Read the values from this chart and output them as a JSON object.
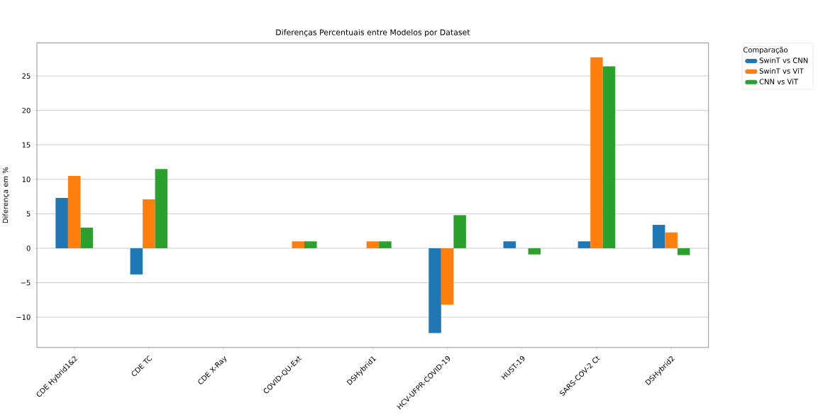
{
  "chart_data": {
    "type": "bar",
    "title": "Diferenças Percentuais entre Modelos por Dataset",
    "ylabel": "Diferença em %",
    "legend_title": "Comparação",
    "categories": [
      "CDE Hybrid1&2",
      "CDE TC",
      "CDE X-Ray",
      "COVID-QU-Ext",
      "DSHybrid1",
      "HCV-UFPR-COVID-19",
      "HUST-19",
      "SARS-COV-2 Ct",
      "DSHybrid2"
    ],
    "series": [
      {
        "name": "SwinT vs CNN",
        "color": "#1f77b4",
        "values": [
          7.3,
          -3.8,
          0,
          0,
          0,
          -12.3,
          1.0,
          1.0,
          3.4
        ]
      },
      {
        "name": "SwinT vs ViT",
        "color": "#ff7f0e",
        "values": [
          10.5,
          7.1,
          0,
          1.0,
          1.0,
          -8.2,
          0,
          27.7,
          2.3
        ]
      },
      {
        "name": "CNN vs ViT",
        "color": "#2ca02c",
        "values": [
          3.0,
          11.5,
          0,
          1.0,
          1.0,
          4.8,
          -0.9,
          26.4,
          -1.0
        ]
      }
    ],
    "ylim": [
      -14.4,
      29.8
    ],
    "yticks": [
      {
        "value": -10,
        "label": "−10"
      },
      {
        "value": -5,
        "label": "−5"
      },
      0,
      5,
      10,
      15,
      20,
      25
    ],
    "grid": "y",
    "legend": "top right"
  }
}
